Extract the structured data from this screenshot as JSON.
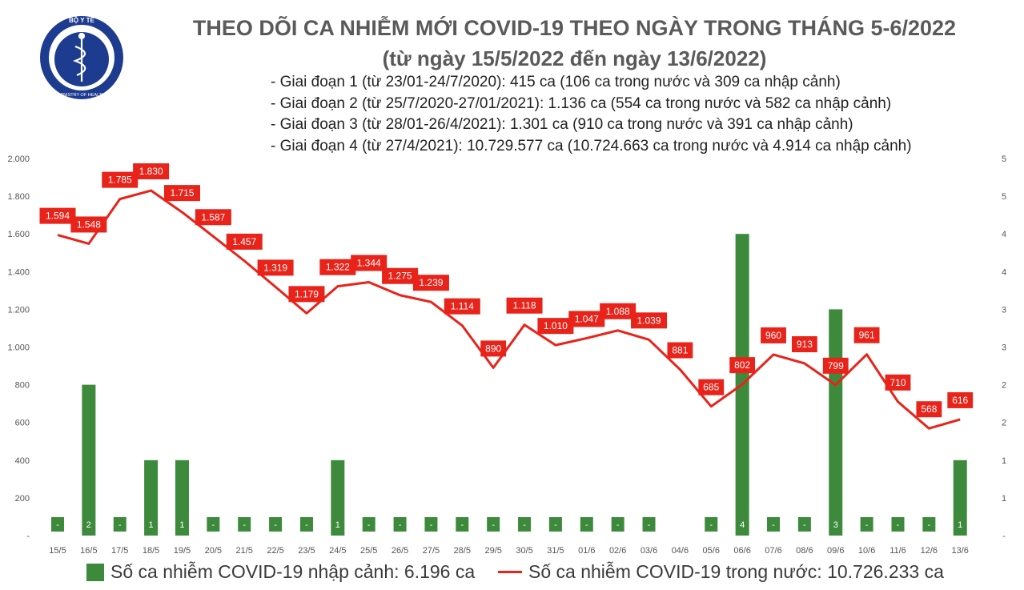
{
  "logo": {
    "text_top": "BỘ Y TẾ",
    "text_bottom": "MINISTRY OF HEALTH",
    "icon": "caduceus-icon",
    "ring_color": "#1d3c8f"
  },
  "header": {
    "title": "THEO DÕI CA NHIỄM MỚI COVID-19 THEO NGÀY TRONG THÁNG 5-6/2022",
    "subtitle": "(từ ngày 15/5/2022 đến ngày 13/6/2022)",
    "notes": [
      "- Giai đoạn 1 (từ 23/01-24/7/2020): 415 ca (106 ca trong nước và 309 ca nhập cảnh)",
      "- Giai đoạn 2 (từ 25/7/2020-27/01/2021): 1.136 ca (554 ca trong nước và 582 ca nhập cảnh)",
      "- Giai đoạn 3 (từ 28/01-26/4/2021): 1.301 ca (910 ca trong nước và 391 ca nhập cảnh)",
      "- Giai đoạn 4 (từ 27/4/2021): 10.729.577 ca (10.724.663 ca trong nước và 4.914 ca nhập cảnh)"
    ]
  },
  "legend": {
    "bar_label": "Số ca nhiễm COVID-19 nhập cảnh: 6.196 ca",
    "line_label": "Số ca nhiễm COVID-19 trong nước: 10.726.233 ca"
  },
  "chart_data": {
    "type": "bar+line",
    "categories": [
      "15/5",
      "16/5",
      "17/5",
      "18/5",
      "19/5",
      "20/5",
      "21/5",
      "22/5",
      "23/5",
      "24/5",
      "25/5",
      "26/5",
      "27/5",
      "28/5",
      "29/5",
      "30/5",
      "31/5",
      "01/6",
      "02/6",
      "03/6",
      "04/6",
      "05/6",
      "06/6",
      "07/6",
      "08/6",
      "09/6",
      "10/6",
      "11/6",
      "12/6",
      "13/6"
    ],
    "series": [
      {
        "name": "Số ca nhiễm COVID-19 nhập cảnh",
        "type": "bar",
        "axis": "right",
        "color": "#3d8a3d",
        "values": [
          0,
          2,
          0,
          1,
          1,
          0,
          0,
          0,
          0,
          1,
          0,
          0,
          0,
          0,
          0,
          0,
          0,
          0,
          0,
          0,
          null,
          0,
          4,
          0,
          0,
          3,
          0,
          0,
          0,
          1
        ],
        "labels": [
          "-",
          "2",
          "-",
          "1",
          "1",
          "-",
          "-",
          "-",
          "-",
          "1",
          "-",
          "-",
          "-",
          "-",
          "-",
          "-",
          "-",
          "-",
          "-",
          "-",
          "",
          "-",
          "4",
          "-",
          "-",
          "3",
          "-",
          "-",
          "-",
          "1"
        ]
      },
      {
        "name": "Số ca nhiễm COVID-19 trong nước",
        "type": "line",
        "axis": "left",
        "color": "#e8231a",
        "values": [
          1594,
          1548,
          1785,
          1830,
          1715,
          1587,
          1457,
          1319,
          1179,
          1322,
          1344,
          1275,
          1239,
          1114,
          890,
          1118,
          1010,
          1047,
          1088,
          1039,
          881,
          685,
          802,
          960,
          913,
          799,
          961,
          710,
          568,
          616
        ],
        "labels": [
          "1.594",
          "1.548",
          "1.785",
          "1.830",
          "1.715",
          "1.587",
          "1.457",
          "1.319",
          "1.179",
          "1.322",
          "1.344",
          "1.275",
          "1.239",
          "1.114",
          "890",
          "1.118",
          "1.010",
          "1.047",
          "1.088",
          "1.039",
          "881",
          "685",
          "802",
          "960",
          "913",
          "799",
          "961",
          "710",
          "568",
          "616"
        ]
      }
    ],
    "y_left": {
      "min": 0,
      "max": 2000,
      "ticks": [
        "-",
        "200",
        "400",
        "600",
        "800",
        "1.000",
        "1.200",
        "1.400",
        "1.600",
        "1.800",
        "2.000"
      ]
    },
    "y_right": {
      "min": 0,
      "max": 5,
      "ticks": [
        "-",
        "1",
        "1",
        "2",
        "2",
        "3",
        "3",
        "4",
        "4",
        "5",
        "5"
      ]
    },
    "grid": false,
    "legend_position": "bottom"
  }
}
